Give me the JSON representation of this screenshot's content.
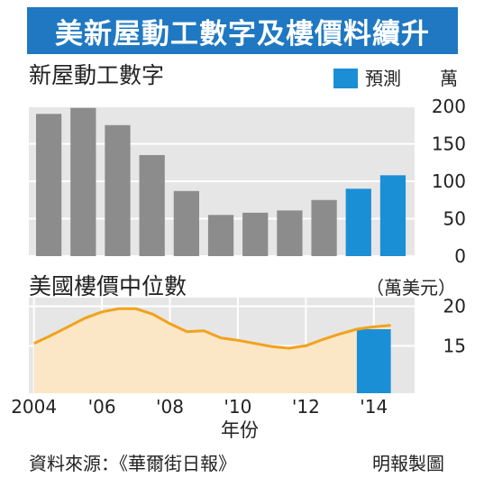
{
  "title": "美新屋動工數字及樓價料續升",
  "colors": {
    "banner": "#1f78c1",
    "bar_actual": "#8c8c8c",
    "bar_forecast": "#1a8fd6",
    "line": "#f2a21b",
    "area": "#fbe6c6",
    "panel_bg": "#e6e6e6",
    "grid": "#ffffff"
  },
  "footer": {
    "source": "資料來源：《華爾街日報》",
    "credit": "明報製圖"
  },
  "chart_data": [
    {
      "type": "bar",
      "title": "新屋動工數字",
      "unit": "萬",
      "legend": "預測",
      "ylim": [
        0,
        200
      ],
      "yticks": [
        "200",
        "150",
        "100",
        "50",
        "0"
      ],
      "ytick_values": [
        200,
        150,
        100,
        50,
        0
      ],
      "categories": [
        "2004",
        "2005",
        "2006",
        "2007",
        "2008",
        "2009",
        "2010",
        "2011",
        "2012",
        "2013",
        "2014"
      ],
      "values": [
        190,
        198,
        175,
        135,
        87,
        55,
        58,
        61,
        75,
        90,
        108
      ],
      "forecast": [
        false,
        false,
        false,
        false,
        false,
        false,
        false,
        false,
        false,
        true,
        true
      ],
      "grid": true
    },
    {
      "type": "area",
      "title": "美國樓價中位數",
      "unit": "（萬美元）",
      "ylim": [
        0,
        20
      ],
      "yticks": [
        "20",
        "15"
      ],
      "ytick_values": [
        20,
        15
      ],
      "x": [
        2004,
        2004.5,
        2005,
        2005.5,
        2006,
        2006.5,
        2007,
        2007.5,
        2008,
        2008.5,
        2009,
        2009.5,
        2010,
        2010.5,
        2011,
        2011.5,
        2012,
        2012.5,
        2013,
        2013.5,
        2014,
        2014.5
      ],
      "values": [
        15.3,
        16.3,
        17.4,
        18.5,
        19.3,
        19.7,
        19.7,
        19.0,
        17.8,
        16.8,
        16.9,
        16.0,
        15.7,
        15.3,
        14.9,
        14.7,
        15.0,
        15.8,
        16.5,
        17.1,
        17.4,
        17.6
      ],
      "forecast_from": 2013.5,
      "xticks": [
        "2004",
        "'06",
        "'08",
        "'10",
        "'12",
        "'14"
      ],
      "xtick_values": [
        2004,
        2006,
        2008,
        2010,
        2012,
        2014
      ],
      "xlabel": "年份",
      "grid": true
    }
  ]
}
